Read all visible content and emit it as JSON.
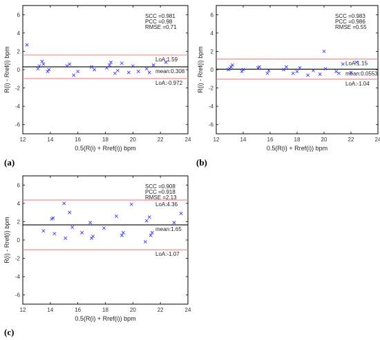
{
  "panel_labels": [
    "(a)",
    "(b)",
    "(c)"
  ],
  "chart_data": [
    {
      "type": "scatter",
      "panel": "(a)",
      "xlabel": "0.5(R(i) + Rref(i)) bpm",
      "ylabel": "R(i) - Rref(i) bpm",
      "xlim": [
        12,
        24
      ],
      "ylim": [
        -7,
        7
      ],
      "xticks": [
        "12",
        "14",
        "16",
        "18",
        "20",
        "22",
        "24"
      ],
      "yticks": [
        "-6",
        "-4",
        "-2",
        "0",
        "2",
        "4",
        "6"
      ],
      "stats": [
        "SCC =0.981",
        "PCC =0.98",
        "RMSE =0.71"
      ],
      "upper_loa": 1.59,
      "upper_label": "LoA:1.59",
      "mean": 0.308,
      "mean_label": "mean:0.308",
      "lower_loa": -0.972,
      "lower_label": "LoA:-0.972",
      "points": [
        [
          12.3,
          2.7
        ],
        [
          13.1,
          0.1
        ],
        [
          13.2,
          0.4
        ],
        [
          13.4,
          0.9
        ],
        [
          13.5,
          0.6
        ],
        [
          13.8,
          -0.2
        ],
        [
          13.9,
          0.0
        ],
        [
          15.2,
          0.4
        ],
        [
          15.4,
          0.6
        ],
        [
          15.7,
          -0.6
        ],
        [
          16.0,
          -0.2
        ],
        [
          17.0,
          0.3
        ],
        [
          17.2,
          0.0
        ],
        [
          18.1,
          0.2
        ],
        [
          18.3,
          0.5
        ],
        [
          18.4,
          0.8
        ],
        [
          18.7,
          -0.4
        ],
        [
          18.9,
          -0.1
        ],
        [
          19.2,
          0.7
        ],
        [
          19.7,
          -0.3
        ],
        [
          20.0,
          0.4
        ],
        [
          20.4,
          -0.2
        ],
        [
          21.0,
          0.1
        ],
        [
          21.2,
          -0.3
        ],
        [
          21.5,
          0.5
        ],
        [
          22.4,
          0.8
        ]
      ],
      "colors": {
        "loa": "#ff7b7b",
        "mean": "#000000",
        "marker": "#2b2bff",
        "grid": "#7f7f7f"
      }
    },
    {
      "type": "scatter",
      "panel": "(b)",
      "xlabel": "0.5(R(i) + Rref(i)) bpm",
      "ylabel": "R(i) - Rref(i) bpm",
      "xlim": [
        12,
        24
      ],
      "ylim": [
        -7,
        7
      ],
      "xticks": [
        "12",
        "14",
        "16",
        "18",
        "20",
        "22",
        "24"
      ],
      "yticks": [
        "-6",
        "-4",
        "-2",
        "0",
        "2",
        "4",
        "6"
      ],
      "stats": [
        "SCC =0.983",
        "PCC =0.986",
        "RMSE =0.55"
      ],
      "upper_loa": 1.15,
      "upper_label": "LoA:1.15",
      "mean": 0.0553,
      "mean_label": "mean:0.0553",
      "lower_loa": -1.04,
      "lower_label": "LoA:-1.04",
      "points": [
        [
          12.9,
          0.0
        ],
        [
          13.0,
          0.1
        ],
        [
          13.1,
          0.3
        ],
        [
          13.2,
          0.5
        ],
        [
          13.9,
          -0.2
        ],
        [
          14.0,
          0.0
        ],
        [
          15.1,
          0.2
        ],
        [
          15.2,
          0.3
        ],
        [
          15.8,
          -0.4
        ],
        [
          15.9,
          -0.1
        ],
        [
          17.0,
          0.0
        ],
        [
          17.2,
          0.3
        ],
        [
          17.7,
          -0.4
        ],
        [
          18.0,
          -0.2
        ],
        [
          18.2,
          0.2
        ],
        [
          18.8,
          -0.6
        ],
        [
          19.2,
          -0.1
        ],
        [
          19.7,
          -0.5
        ],
        [
          20.0,
          2.0
        ],
        [
          20.1,
          0.1
        ],
        [
          20.9,
          -0.2
        ],
        [
          21.1,
          -0.4
        ],
        [
          21.4,
          0.6
        ],
        [
          22.0,
          -0.3
        ],
        [
          22.4,
          0.8
        ]
      ],
      "colors": {
        "loa": "#ff7b7b",
        "mean": "#000000",
        "marker": "#2b2bff",
        "grid": "#7f7f7f"
      }
    },
    {
      "type": "scatter",
      "panel": "(c)",
      "xlabel": "0.5(R(i) + Rref(i)) bpm",
      "ylabel": "R(i) - Rref(i) bpm",
      "xlim": [
        12,
        24
      ],
      "ylim": [
        -7,
        7
      ],
      "xticks": [
        "12",
        "14",
        "16",
        "18",
        "20",
        "22",
        "24"
      ],
      "yticks": [
        "-6",
        "-4",
        "-2",
        "0",
        "2",
        "4",
        "6"
      ],
      "stats": [
        "SCC =0.908",
        "PCC =0.918",
        "RMSE =2.13"
      ],
      "upper_loa": 4.36,
      "upper_label": "LoA:4.36",
      "mean": 1.65,
      "mean_label": "mean:1.65",
      "lower_loa": -1.07,
      "lower_label": "LoA:-1.07",
      "points": [
        [
          13.5,
          1.0
        ],
        [
          14.1,
          2.3
        ],
        [
          14.2,
          2.4
        ],
        [
          14.3,
          0.7
        ],
        [
          15.0,
          4.0
        ],
        [
          15.1,
          0.2
        ],
        [
          15.4,
          3.0
        ],
        [
          15.6,
          1.4
        ],
        [
          16.3,
          0.8
        ],
        [
          16.9,
          1.9
        ],
        [
          17.0,
          0.2
        ],
        [
          17.1,
          0.4
        ],
        [
          17.9,
          1.3
        ],
        [
          18.8,
          2.6
        ],
        [
          19.2,
          0.5
        ],
        [
          19.3,
          0.8
        ],
        [
          19.9,
          3.9
        ],
        [
          20.9,
          -0.2
        ],
        [
          21.0,
          2.1
        ],
        [
          21.2,
          2.5
        ],
        [
          21.3,
          0.5
        ],
        [
          21.4,
          0.8
        ],
        [
          23.0,
          1.9
        ],
        [
          23.5,
          2.9
        ]
      ],
      "colors": {
        "loa": "#ff7b7b",
        "mean": "#000000",
        "marker": "#2b2bff",
        "grid": "#7f7f7f"
      }
    }
  ]
}
